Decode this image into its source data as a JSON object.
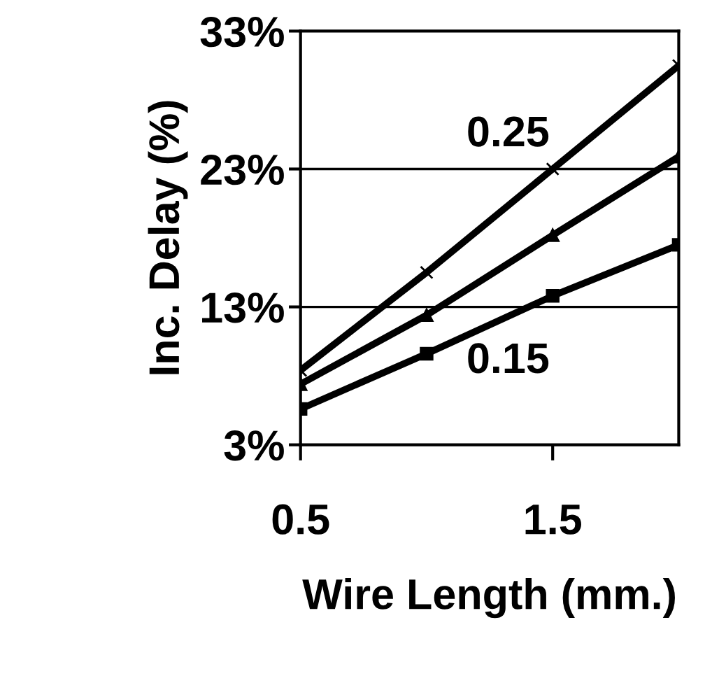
{
  "chart_data": {
    "type": "line",
    "xlabel": "Wire Length (mm.)",
    "ylabel": "Inc. Delay (%)",
    "x": [
      0.5,
      1.0,
      1.5,
      2.0
    ],
    "series": [
      {
        "name": "0.25",
        "color": "#000000",
        "marker": "cross",
        "values": [
          8.4,
          15.5,
          23.0,
          30.5
        ]
      },
      {
        "color": "#000000",
        "marker": "triangle",
        "values": [
          7.4,
          12.4,
          18.2,
          23.9
        ]
      },
      {
        "name": "0.15",
        "color": "#000000",
        "marker": "square",
        "values": [
          5.6,
          9.6,
          13.8,
          17.5
        ]
      }
    ],
    "xlim": [
      0.5,
      2.0
    ],
    "xticks": [
      0.5,
      1.5
    ],
    "ylim": [
      3,
      33
    ],
    "yticks": [
      {
        "value": 3,
        "label": "3%"
      },
      {
        "value": 13,
        "label": "13%"
      },
      {
        "value": 23,
        "label": "23%"
      },
      {
        "value": 33,
        "label": "33%"
      }
    ],
    "grid": "y",
    "legend": false,
    "line_style": "solid"
  }
}
